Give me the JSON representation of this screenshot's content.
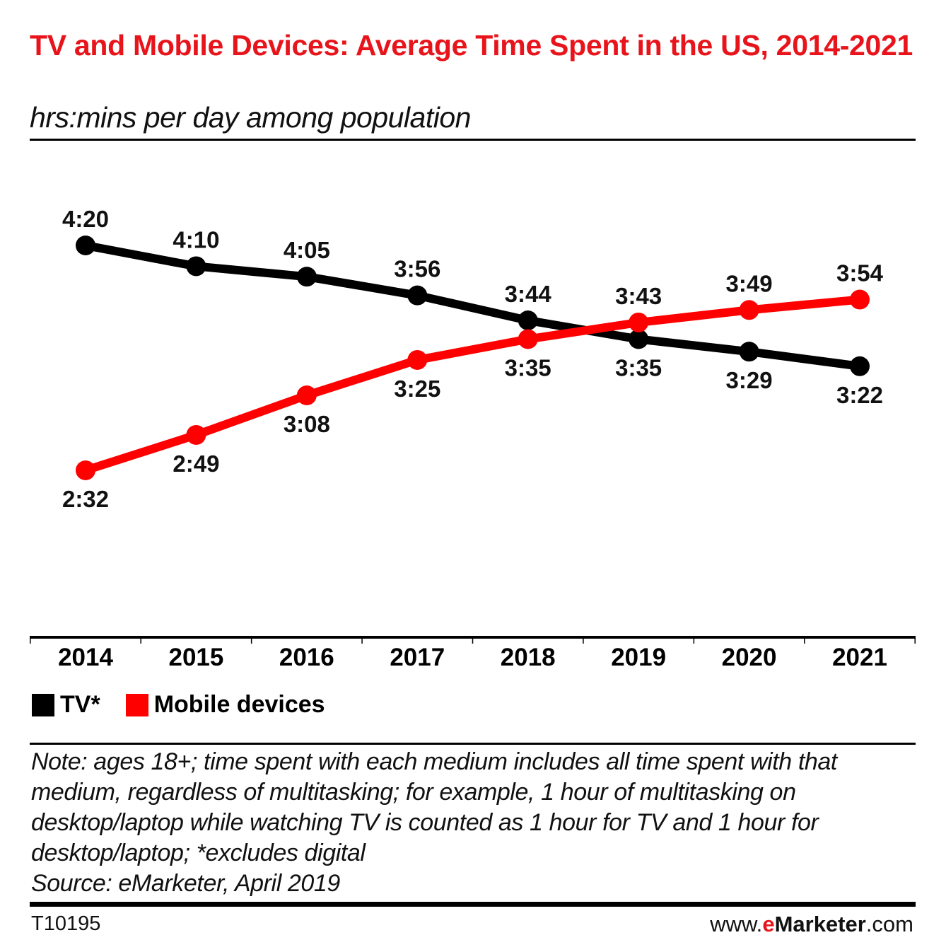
{
  "header": {
    "title": "TV and Mobile Devices: Average Time Spent in the US, 2014-2021",
    "subtitle": "hrs:mins per day among population"
  },
  "chart_data": {
    "type": "line",
    "title": "TV and Mobile Devices: Average Time Spent in the US, 2014-2021",
    "subtitle": "hrs:mins per day among population",
    "xlabel": "",
    "ylabel": "hrs:mins per day",
    "categories": [
      "2014",
      "2015",
      "2016",
      "2017",
      "2018",
      "2019",
      "2020",
      "2021"
    ],
    "series": [
      {
        "name": "TV*",
        "color": "#000000",
        "labels": [
          "4:20",
          "4:10",
          "4:05",
          "3:56",
          "3:44",
          "3:35",
          "3:29",
          "3:22"
        ],
        "values_minutes": [
          260,
          250,
          245,
          236,
          224,
          215,
          209,
          202
        ],
        "label_position": [
          "above",
          "above",
          "above",
          "above",
          "above",
          "below",
          "below",
          "below"
        ]
      },
      {
        "name": "Mobile devices",
        "color": "#ff0000",
        "labels": [
          "2:32",
          "2:49",
          "3:08",
          "3:25",
          "3:35",
          "3:43",
          "3:49",
          "3:54"
        ],
        "values_minutes": [
          152,
          169,
          188,
          205,
          215,
          223,
          229,
          234
        ],
        "label_position": [
          "below",
          "below",
          "below",
          "below",
          "below",
          "above",
          "above",
          "above"
        ]
      }
    ],
    "y_range_minutes": [
      152,
      260
    ],
    "grid": false,
    "legend_placement": "bottom-left"
  },
  "legend": [
    {
      "label": "TV*",
      "color": "#000000"
    },
    {
      "label": "Mobile devices",
      "color": "#ff0000"
    }
  ],
  "footer": {
    "note": "Note: ages 18+; time spent with each medium includes all time spent with that medium, regardless of multitasking; for example, 1 hour of multitasking on desktop/laptop while watching TV is counted as 1 hour for TV and 1 hour for desktop/laptop; *excludes digital",
    "source": "Source: eMarketer, April 2019",
    "chart_code": "T10195",
    "brand_prefix": "www.",
    "brand_e": "e",
    "brand_name": "Marketer",
    "brand_suffix": ".com"
  }
}
